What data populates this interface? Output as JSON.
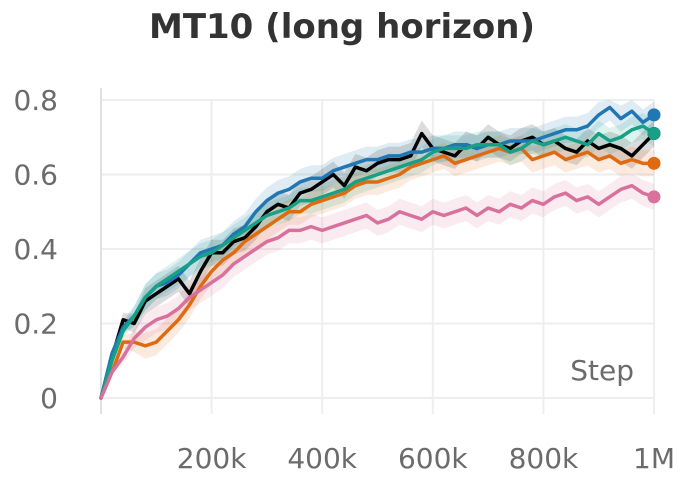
{
  "chart_data": {
    "type": "line",
    "title": "MT10 (long horizon)",
    "xlabel": "Step",
    "ylabel": "",
    "xlim": [
      0,
      1000000
    ],
    "ylim": [
      0,
      0.8
    ],
    "xticks": [
      200000,
      400000,
      600000,
      800000,
      1000000
    ],
    "xtick_labels": [
      "200k",
      "400k",
      "600k",
      "800k",
      "1M"
    ],
    "yticks": [
      0,
      0.2,
      0.4,
      0.6,
      0.8
    ],
    "ytick_labels": [
      "0",
      "0.2",
      "0.4",
      "0.6",
      "0.8"
    ],
    "grid": true,
    "legend": "none",
    "x": [
      0,
      20000,
      40000,
      60000,
      80000,
      100000,
      120000,
      140000,
      160000,
      180000,
      200000,
      220000,
      240000,
      260000,
      280000,
      300000,
      320000,
      340000,
      360000,
      380000,
      400000,
      420000,
      440000,
      460000,
      480000,
      500000,
      520000,
      540000,
      560000,
      580000,
      600000,
      620000,
      640000,
      660000,
      680000,
      700000,
      720000,
      740000,
      760000,
      780000,
      800000,
      820000,
      840000,
      860000,
      880000,
      900000,
      920000,
      940000,
      960000,
      980000,
      1000000
    ],
    "series": [
      {
        "color": "#000000",
        "values": [
          0.0,
          0.11,
          0.21,
          0.2,
          0.26,
          0.28,
          0.3,
          0.32,
          0.28,
          0.34,
          0.39,
          0.39,
          0.42,
          0.43,
          0.46,
          0.5,
          0.52,
          0.51,
          0.55,
          0.56,
          0.58,
          0.6,
          0.57,
          0.62,
          0.61,
          0.63,
          0.64,
          0.64,
          0.65,
          0.71,
          0.67,
          0.66,
          0.65,
          0.68,
          0.67,
          0.7,
          0.68,
          0.67,
          0.69,
          0.7,
          0.68,
          0.69,
          0.67,
          0.66,
          0.69,
          0.67,
          0.68,
          0.67,
          0.65,
          0.68,
          0.71
        ]
      },
      {
        "color": "#1f77b4",
        "values": [
          0.0,
          0.12,
          0.19,
          0.22,
          0.27,
          0.3,
          0.31,
          0.33,
          0.36,
          0.39,
          0.4,
          0.41,
          0.44,
          0.46,
          0.5,
          0.53,
          0.55,
          0.56,
          0.58,
          0.59,
          0.59,
          0.61,
          0.62,
          0.63,
          0.64,
          0.64,
          0.65,
          0.65,
          0.66,
          0.66,
          0.67,
          0.67,
          0.68,
          0.68,
          0.67,
          0.68,
          0.68,
          0.69,
          0.69,
          0.69,
          0.7,
          0.71,
          0.72,
          0.72,
          0.73,
          0.76,
          0.78,
          0.75,
          0.77,
          0.74,
          0.76
        ]
      },
      {
        "color": "#e06a10",
        "values": [
          0.0,
          0.07,
          0.15,
          0.15,
          0.14,
          0.15,
          0.18,
          0.21,
          0.25,
          0.3,
          0.34,
          0.37,
          0.39,
          0.42,
          0.44,
          0.46,
          0.48,
          0.5,
          0.5,
          0.52,
          0.53,
          0.54,
          0.55,
          0.57,
          0.58,
          0.58,
          0.59,
          0.6,
          0.62,
          0.63,
          0.64,
          0.65,
          0.63,
          0.64,
          0.65,
          0.66,
          0.67,
          0.66,
          0.67,
          0.64,
          0.65,
          0.66,
          0.64,
          0.65,
          0.66,
          0.64,
          0.65,
          0.63,
          0.64,
          0.63,
          0.63
        ]
      },
      {
        "color": "#16a085",
        "values": [
          0.0,
          0.1,
          0.18,
          0.22,
          0.27,
          0.3,
          0.32,
          0.34,
          0.36,
          0.38,
          0.39,
          0.41,
          0.43,
          0.45,
          0.47,
          0.49,
          0.5,
          0.51,
          0.53,
          0.53,
          0.54,
          0.55,
          0.56,
          0.58,
          0.59,
          0.6,
          0.61,
          0.62,
          0.63,
          0.64,
          0.66,
          0.67,
          0.67,
          0.67,
          0.68,
          0.68,
          0.68,
          0.66,
          0.67,
          0.69,
          0.68,
          0.69,
          0.7,
          0.69,
          0.68,
          0.71,
          0.69,
          0.7,
          0.72,
          0.73,
          0.71
        ]
      },
      {
        "color": "#d9719d",
        "values": [
          0.0,
          0.07,
          0.11,
          0.16,
          0.19,
          0.21,
          0.22,
          0.24,
          0.27,
          0.29,
          0.31,
          0.33,
          0.36,
          0.38,
          0.4,
          0.42,
          0.43,
          0.45,
          0.45,
          0.46,
          0.45,
          0.46,
          0.47,
          0.48,
          0.49,
          0.47,
          0.48,
          0.5,
          0.49,
          0.48,
          0.5,
          0.49,
          0.5,
          0.51,
          0.49,
          0.51,
          0.5,
          0.52,
          0.51,
          0.53,
          0.52,
          0.54,
          0.55,
          0.53,
          0.54,
          0.52,
          0.54,
          0.56,
          0.57,
          0.55,
          0.54
        ]
      }
    ]
  }
}
